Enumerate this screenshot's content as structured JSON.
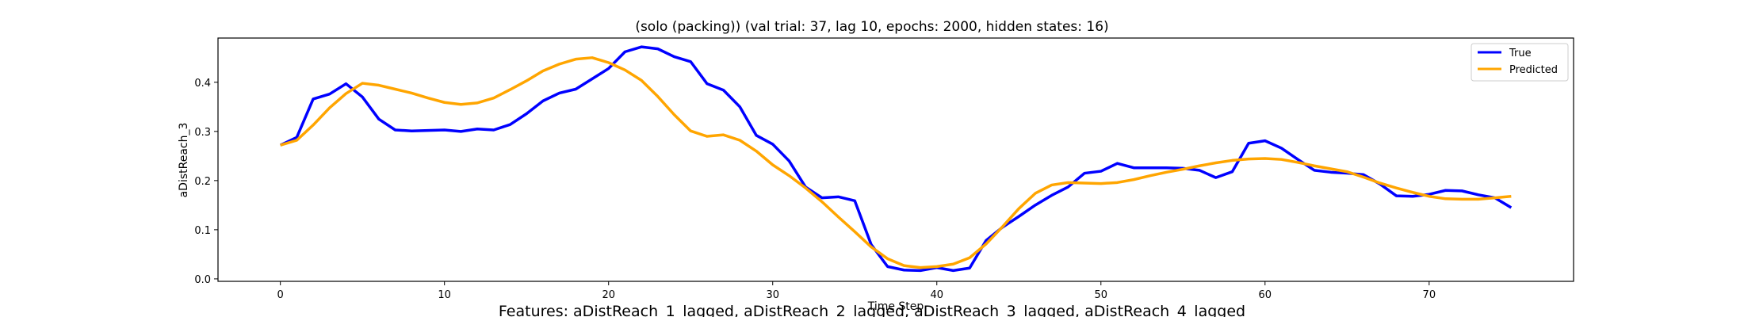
{
  "chart_data": {
    "type": "line",
    "title": "(solo (packing)) (val trial: 37, lag 10, epochs: 2000, hidden states: 16)",
    "xlabel": "Time Step",
    "ylabel": "aDistReach_3",
    "footer": "Features: aDistReach_1_lagged, aDistReach_2_lagged, aDistReach_3_lagged, aDistReach_4_lagged",
    "xlim": [
      -3.8,
      78.8
    ],
    "ylim": [
      -0.005,
      0.49
    ],
    "xticks": [
      0,
      10,
      20,
      30,
      40,
      50,
      60,
      70
    ],
    "yticks": [
      0.0,
      0.1,
      0.2,
      0.3,
      0.4
    ],
    "ytick_labels": [
      "0.0",
      "0.1",
      "0.2",
      "0.3",
      "0.4"
    ],
    "grid": false,
    "legend_position": "top-right",
    "series": [
      {
        "name": "True",
        "color": "#0000ff",
        "values": [
          0.272,
          0.288,
          0.366,
          0.376,
          0.397,
          0.37,
          0.325,
          0.303,
          0.301,
          0.302,
          0.303,
          0.3,
          0.305,
          0.303,
          0.314,
          0.336,
          0.362,
          0.378,
          0.386,
          0.407,
          0.428,
          0.462,
          0.472,
          0.468,
          0.452,
          0.442,
          0.397,
          0.384,
          0.35,
          0.292,
          0.274,
          0.24,
          0.187,
          0.165,
          0.167,
          0.159,
          0.07,
          0.025,
          0.018,
          0.017,
          0.023,
          0.017,
          0.022,
          0.078,
          0.105,
          0.127,
          0.15,
          0.17,
          0.187,
          0.215,
          0.219,
          0.235,
          0.226,
          0.226,
          0.226,
          0.225,
          0.221,
          0.206,
          0.218,
          0.276,
          0.281,
          0.266,
          0.243,
          0.221,
          0.217,
          0.215,
          0.212,
          0.193,
          0.169,
          0.168,
          0.172,
          0.18,
          0.179,
          0.171,
          0.165,
          0.145
        ]
      },
      {
        "name": "Predicted",
        "color": "#ffa500",
        "values": [
          0.272,
          0.282,
          0.313,
          0.348,
          0.377,
          0.398,
          0.394,
          0.386,
          0.378,
          0.368,
          0.359,
          0.355,
          0.358,
          0.368,
          0.385,
          0.403,
          0.423,
          0.437,
          0.447,
          0.45,
          0.44,
          0.425,
          0.404,
          0.371,
          0.334,
          0.301,
          0.29,
          0.293,
          0.282,
          0.26,
          0.232,
          0.21,
          0.185,
          0.157,
          0.126,
          0.096,
          0.065,
          0.041,
          0.027,
          0.023,
          0.025,
          0.03,
          0.043,
          0.071,
          0.106,
          0.143,
          0.174,
          0.191,
          0.196,
          0.195,
          0.194,
          0.196,
          0.202,
          0.21,
          0.217,
          0.223,
          0.23,
          0.236,
          0.241,
          0.244,
          0.245,
          0.243,
          0.237,
          0.23,
          0.224,
          0.218,
          0.207,
          0.195,
          0.185,
          0.176,
          0.168,
          0.163,
          0.162,
          0.162,
          0.165,
          0.168
        ]
      }
    ]
  }
}
